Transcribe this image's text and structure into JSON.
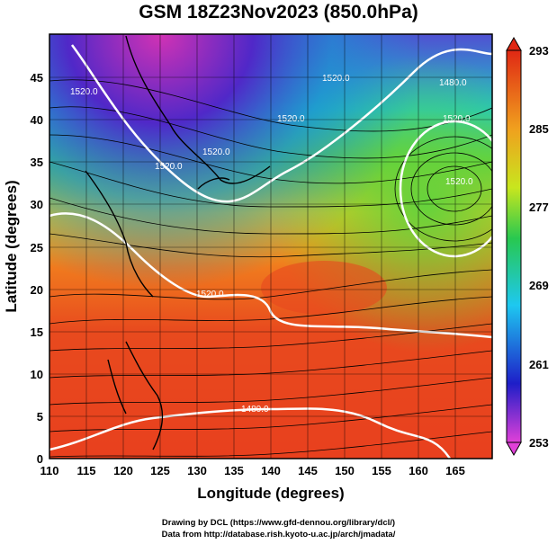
{
  "title": "GSM 18Z23Nov2023 (850.0hPa)",
  "x_axis": {
    "label": "Longitude (degrees)",
    "ticks": [
      "110",
      "115",
      "120",
      "125",
      "130",
      "135",
      "140",
      "145",
      "150",
      "155",
      "160",
      "165"
    ],
    "range": [
      110,
      170
    ]
  },
  "y_axis": {
    "label": "Latitude  (degrees)",
    "ticks": [
      "0",
      "5",
      "10",
      "15",
      "20",
      "25",
      "30",
      "35",
      "40",
      "45"
    ],
    "range": [
      0,
      50
    ]
  },
  "colorbar": {
    "labels": [
      "293",
      "285",
      "277",
      "269",
      "261",
      "253"
    ],
    "range": [
      253,
      293
    ],
    "colors": [
      "#d21ec8",
      "#1e28c8",
      "#1ec8dc",
      "#28c850",
      "#c8dc1e",
      "#f0a01e",
      "#dc2814"
    ]
  },
  "contour_labels": [
    "1520.0",
    "1520.0",
    "1520.0",
    "1520.0",
    "1520.0",
    "1520.0",
    "1520.0",
    "1520.0",
    "1480.0",
    "1480.0"
  ],
  "credits": {
    "line1": "Drawing by DCL (https://www.gfd-dennou.org/library/dcl/)",
    "line2": "Data from http://database.rish.kyoto-u.ac.jp/arch/jmadata/"
  }
}
